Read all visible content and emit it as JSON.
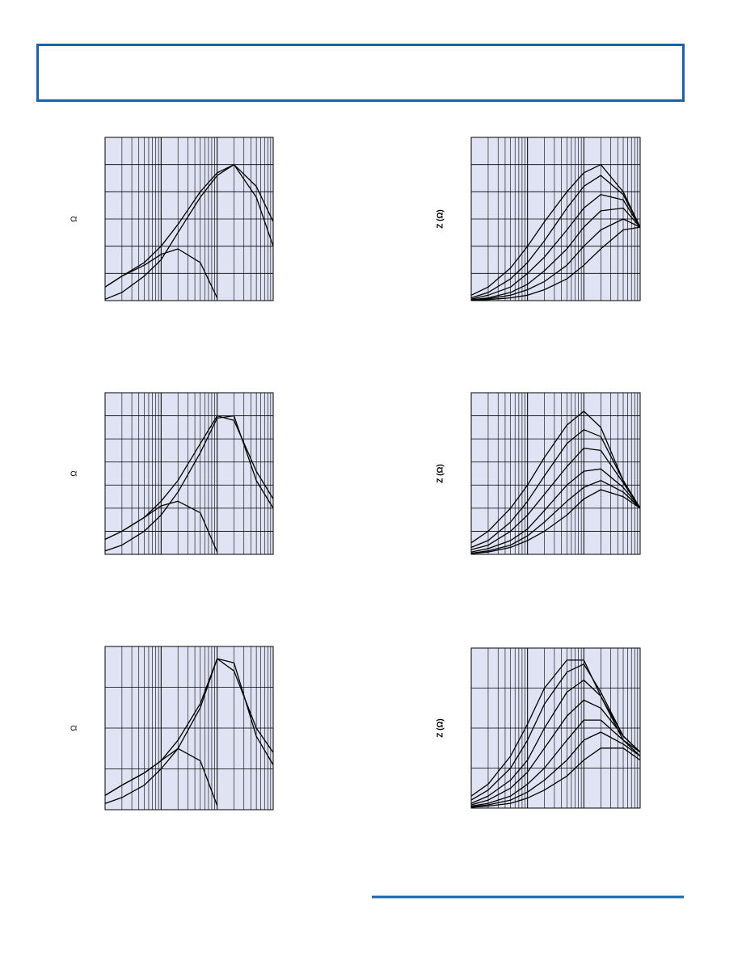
{
  "chart_data": [
    {
      "type": "line",
      "y_label": "Ω",
      "log_x": true,
      "grid": true,
      "color": "#000000",
      "x": [
        1,
        2,
        5,
        10,
        20,
        50,
        100,
        200,
        500,
        1000
      ],
      "xlim": [
        1,
        1000
      ],
      "ylim": [
        0,
        6
      ],
      "series": [
        {
          "values": [
            0.5,
            0.9,
            1.4,
            2.0,
            2.8,
            4.0,
            4.7,
            5.0,
            4.2,
            2.9
          ]
        },
        {
          "values": [
            0.05,
            0.3,
            0.9,
            1.5,
            2.5,
            3.8,
            4.6,
            5.0,
            3.8,
            2.0
          ]
        },
        {
          "values": [
            0.5,
            0.9,
            1.3,
            1.7,
            1.9,
            1.4,
            0.1,
            null,
            null,
            null
          ]
        }
      ]
    },
    {
      "type": "line",
      "y_label": "Z (Ω)",
      "log_x": true,
      "grid": true,
      "color": "#000000",
      "x": [
        1,
        2,
        5,
        10,
        20,
        50,
        100,
        200,
        500,
        1000
      ],
      "xlim": [
        1,
        1000
      ],
      "ylim": [
        0,
        6
      ],
      "series": [
        {
          "values": [
            0.2,
            0.5,
            1.2,
            2.0,
            2.9,
            4.0,
            4.7,
            5.0,
            4.0,
            2.7
          ]
        },
        {
          "values": [
            0.1,
            0.3,
            0.8,
            1.4,
            2.2,
            3.4,
            4.2,
            4.6,
            3.9,
            2.7
          ]
        },
        {
          "values": [
            0.05,
            0.2,
            0.5,
            1.0,
            1.6,
            2.6,
            3.4,
            3.9,
            3.7,
            2.7
          ]
        },
        {
          "values": [
            0.03,
            0.1,
            0.3,
            0.6,
            1.1,
            1.9,
            2.7,
            3.3,
            3.4,
            2.7
          ]
        },
        {
          "values": [
            0.02,
            0.07,
            0.2,
            0.4,
            0.7,
            1.3,
            2.0,
            2.6,
            3.0,
            2.7
          ]
        },
        {
          "values": [
            0.01,
            0.04,
            0.1,
            0.2,
            0.4,
            0.8,
            1.3,
            1.9,
            2.6,
            2.7
          ]
        }
      ]
    },
    {
      "type": "line",
      "y_label": "Ω",
      "log_x": true,
      "grid": true,
      "color": "#000000",
      "x": [
        1,
        2,
        5,
        10,
        20,
        50,
        100,
        200,
        500,
        1000
      ],
      "xlim": [
        1,
        1000
      ],
      "ylim": [
        0,
        7
      ],
      "series": [
        {
          "values": [
            0.65,
            1.0,
            1.6,
            2.3,
            3.2,
            4.8,
            6.0,
            5.8,
            3.6,
            2.4
          ]
        },
        {
          "values": [
            0.15,
            0.4,
            1.0,
            1.7,
            2.7,
            4.4,
            5.9,
            6.0,
            3.2,
            2.0
          ]
        },
        {
          "values": [
            0.65,
            1.0,
            1.6,
            2.1,
            2.3,
            1.8,
            0.1,
            null,
            null,
            null
          ]
        }
      ]
    },
    {
      "type": "line",
      "y_label": "Z (Ω)",
      "log_x": true,
      "grid": true,
      "color": "#000000",
      "x": [
        1,
        2,
        5,
        10,
        20,
        50,
        100,
        200,
        500,
        1000
      ],
      "xlim": [
        1,
        1000
      ],
      "ylim": [
        0,
        7
      ],
      "series": [
        {
          "values": [
            0.5,
            1.0,
            2.0,
            3.0,
            4.2,
            5.6,
            6.2,
            5.5,
            3.2,
            2.0
          ]
        },
        {
          "values": [
            0.3,
            0.6,
            1.4,
            2.3,
            3.4,
            4.8,
            5.4,
            5.1,
            3.2,
            2.0
          ]
        },
        {
          "values": [
            0.2,
            0.4,
            1.0,
            1.7,
            2.6,
            3.8,
            4.6,
            4.5,
            3.1,
            2.0
          ]
        },
        {
          "values": [
            0.1,
            0.25,
            0.6,
            1.1,
            1.9,
            3.0,
            3.6,
            3.7,
            2.9,
            2.0
          ]
        },
        {
          "values": [
            0.05,
            0.15,
            0.4,
            0.8,
            1.4,
            2.3,
            2.9,
            3.2,
            2.7,
            2.0
          ]
        },
        {
          "values": [
            0.03,
            0.1,
            0.3,
            0.6,
            1.0,
            1.7,
            2.4,
            2.8,
            2.5,
            2.0
          ]
        }
      ]
    },
    {
      "type": "line",
      "y_label": "Ω",
      "log_x": true,
      "grid": true,
      "color": "#000000",
      "x": [
        1,
        2,
        5,
        10,
        20,
        50,
        100,
        200,
        500,
        1000
      ],
      "xlim": [
        1,
        1000
      ],
      "ylim": [
        0,
        4
      ],
      "series": [
        {
          "values": [
            0.35,
            0.6,
            0.9,
            1.2,
            1.7,
            2.6,
            3.7,
            3.4,
            2.0,
            1.4
          ]
        },
        {
          "values": [
            0.15,
            0.3,
            0.6,
            1.0,
            1.5,
            2.5,
            3.7,
            3.6,
            1.8,
            1.1
          ]
        },
        {
          "values": [
            0.35,
            0.6,
            0.9,
            1.2,
            1.5,
            1.2,
            0.1,
            null,
            null,
            null
          ]
        }
      ]
    },
    {
      "type": "line",
      "y_label": "Z (Ω)",
      "log_x": true,
      "grid": true,
      "color": "#000000",
      "x": [
        1,
        2,
        5,
        10,
        20,
        50,
        100,
        200,
        500,
        1000
      ],
      "xlim": [
        1,
        1000
      ],
      "ylim": [
        0,
        4
      ],
      "series": [
        {
          "values": [
            0.3,
            0.6,
            1.3,
            2.1,
            3.0,
            3.7,
            3.7,
            2.8,
            1.7,
            1.4
          ]
        },
        {
          "values": [
            0.2,
            0.45,
            1.0,
            1.7,
            2.6,
            3.4,
            3.6,
            2.9,
            1.8,
            1.4
          ]
        },
        {
          "values": [
            0.12,
            0.3,
            0.7,
            1.2,
            2.0,
            2.9,
            3.2,
            2.8,
            1.8,
            1.4
          ]
        },
        {
          "values": [
            0.08,
            0.2,
            0.5,
            0.9,
            1.5,
            2.3,
            2.7,
            2.5,
            1.8,
            1.4
          ]
        },
        {
          "values": [
            0.05,
            0.12,
            0.3,
            0.6,
            1.0,
            1.7,
            2.2,
            2.2,
            1.7,
            1.3
          ]
        },
        {
          "values": [
            0.03,
            0.08,
            0.2,
            0.4,
            0.7,
            1.2,
            1.7,
            1.9,
            1.6,
            1.3
          ]
        },
        {
          "values": [
            0.02,
            0.05,
            0.12,
            0.25,
            0.45,
            0.8,
            1.2,
            1.5,
            1.5,
            1.2
          ]
        }
      ]
    }
  ]
}
